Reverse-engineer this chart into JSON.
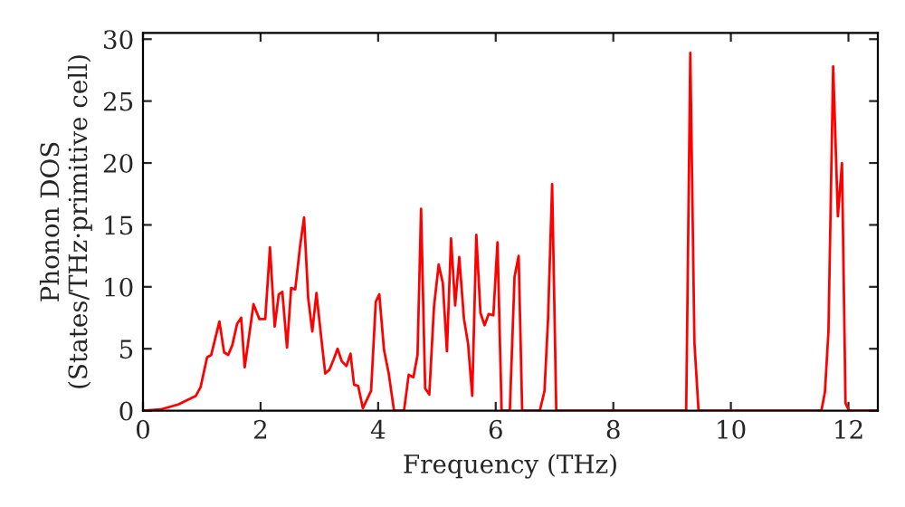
{
  "chart_data": {
    "type": "line",
    "xlabel": "Frequency (THz)",
    "ylabel": "Phonon DOS\n(States/THz·primitive cell)",
    "xlim": [
      0,
      12.5
    ],
    "ylim": [
      0,
      30.5
    ],
    "xticks": [
      0,
      2,
      4,
      6,
      8,
      10,
      12
    ],
    "yticks": [
      0,
      5,
      10,
      15,
      20,
      25,
      30
    ],
    "grid": false,
    "series": [
      {
        "color": "#ff0000",
        "x": [
          0,
          0.3,
          0.6,
          0.9,
          0.98,
          1.09,
          1.16,
          1.3,
          1.38,
          1.45,
          1.52,
          1.6,
          1.67,
          1.73,
          1.88,
          1.98,
          2.08,
          2.16,
          2.24,
          2.31,
          2.37,
          2.45,
          2.52,
          2.59,
          2.67,
          2.74,
          2.81,
          2.88,
          2.95,
          3.03,
          3.1,
          3.17,
          3.24,
          3.31,
          3.38,
          3.46,
          3.53,
          3.59,
          3.66,
          3.74,
          3.88,
          3.96,
          4.02,
          4.1,
          4.18,
          4.27,
          4.44,
          4.52,
          4.6,
          4.67,
          4.73,
          4.8,
          4.87,
          4.95,
          5.03,
          5.1,
          5.17,
          5.24,
          5.31,
          5.38,
          5.46,
          5.53,
          5.6,
          5.67,
          5.74,
          5.81,
          5.88,
          5.96,
          6.03,
          6.1,
          6.24,
          6.32,
          6.39,
          6.45,
          6.75,
          6.83,
          6.89,
          6.96,
          7.03,
          9.24,
          9.31,
          9.38,
          9.45,
          11.54,
          11.6,
          11.66,
          11.74,
          11.82,
          11.89,
          11.95,
          12.01,
          12.5
        ],
        "values": [
          0,
          0.1,
          0.5,
          1.2,
          1.9,
          4.3,
          4.5,
          7.2,
          4.7,
          4.5,
          5.3,
          7.0,
          7.5,
          3.5,
          8.6,
          7.4,
          7.4,
          13.2,
          6.8,
          9.4,
          9.6,
          5.1,
          9.9,
          9.8,
          13.2,
          15.6,
          9.1,
          6.4,
          9.5,
          6.0,
          3.0,
          3.3,
          4.1,
          5.0,
          4.0,
          3.6,
          4.6,
          2.1,
          2.0,
          0.2,
          1.6,
          8.8,
          9.4,
          4.9,
          3.0,
          0,
          0,
          2.9,
          2.7,
          4.5,
          16.3,
          1.8,
          1.3,
          8.4,
          11.8,
          10.3,
          4.8,
          13.9,
          8.5,
          12.4,
          7.4,
          5.4,
          1.2,
          14.2,
          7.9,
          6.9,
          7.8,
          7.7,
          13.6,
          0,
          0,
          10.8,
          12.5,
          0,
          0,
          1.6,
          7.4,
          18.3,
          0,
          0,
          28.9,
          5.5,
          0,
          0,
          1.5,
          6.4,
          27.8,
          15.7,
          20.0,
          0.6,
          0,
          0
        ]
      }
    ]
  }
}
